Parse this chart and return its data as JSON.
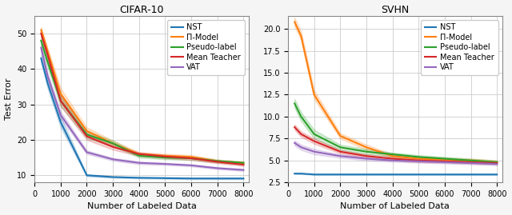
{
  "cifar10": {
    "title": "CIFAR-10",
    "xlabel": "Number of Labeled Data",
    "ylabel": "Test Error",
    "x": [
      250,
      500,
      1000,
      2000,
      3000,
      4000,
      5000,
      6000,
      7000,
      8000
    ],
    "series": {
      "NST": {
        "color": "#1f77b4",
        "mean": [
          43,
          36,
          25,
          10,
          9.5,
          9.3,
          9.2,
          9.1,
          9.1,
          9.1
        ],
        "std": [
          1.0,
          1.5,
          1.5,
          0.3,
          0.2,
          0.2,
          0.2,
          0.2,
          0.2,
          0.2
        ]
      },
      "Pi-Model": {
        "color": "#ff7f0e",
        "mean": [
          51,
          45,
          33,
          22.5,
          19,
          16,
          15.5,
          15.2,
          14.0,
          13.5
        ],
        "std": [
          0.8,
          1.0,
          1.5,
          1.0,
          0.8,
          0.5,
          0.5,
          0.5,
          0.4,
          0.4
        ]
      },
      "Pseudo-label": {
        "color": "#2ca02c",
        "mean": [
          48,
          42,
          31,
          21.5,
          19,
          15.5,
          15.0,
          14.8,
          14.0,
          13.5
        ],
        "std": [
          1.5,
          1.5,
          1.5,
          1.0,
          0.8,
          0.5,
          0.5,
          0.5,
          0.4,
          0.4
        ]
      },
      "Mean Teacher": {
        "color": "#d62728",
        "mean": [
          50,
          44,
          31,
          21,
          18,
          16,
          15.3,
          14.8,
          13.8,
          13.0
        ],
        "std": [
          1.0,
          1.0,
          1.5,
          1.0,
          0.8,
          0.5,
          0.5,
          0.5,
          0.4,
          0.4
        ]
      },
      "VAT": {
        "color": "#9467bd",
        "mean": [
          46,
          38,
          27,
          16.5,
          14.5,
          13.5,
          13.2,
          12.8,
          12.0,
          11.5
        ],
        "std": [
          1.0,
          1.0,
          1.0,
          0.5,
          0.4,
          0.4,
          0.3,
          0.3,
          0.3,
          0.3
        ]
      }
    },
    "legend_labels": [
      "NST",
      "Π-Model",
      "Pseudo-label",
      "Mean Teacher",
      "VAT"
    ],
    "ylim": [
      8,
      55
    ],
    "yticks": [
      10,
      20,
      30,
      40,
      50
    ],
    "xlim": [
      0,
      8200
    ],
    "xticks": [
      0,
      1000,
      2000,
      3000,
      4000,
      5000,
      6000,
      7000,
      8000
    ]
  },
  "svhn": {
    "title": "SVHN",
    "xlabel": "Number of Labeled Data",
    "ylabel": "",
    "x": [
      250,
      500,
      1000,
      2000,
      3000,
      4000,
      5000,
      6000,
      7000,
      8000
    ],
    "series": {
      "NST": {
        "color": "#1f77b4",
        "mean": [
          3.5,
          3.5,
          3.4,
          3.4,
          3.4,
          3.4,
          3.4,
          3.4,
          3.4,
          3.4
        ],
        "std": [
          0.05,
          0.05,
          0.05,
          0.05,
          0.05,
          0.05,
          0.05,
          0.05,
          0.05,
          0.05
        ]
      },
      "Pi-Model": {
        "color": "#ff7f0e",
        "mean": [
          20.8,
          19.2,
          12.5,
          7.8,
          6.5,
          5.5,
          5.2,
          5.1,
          5.0,
          4.8
        ],
        "std": [
          0.5,
          0.5,
          0.5,
          0.3,
          0.3,
          0.2,
          0.2,
          0.2,
          0.2,
          0.2
        ]
      },
      "Pseudo-label": {
        "color": "#2ca02c",
        "mean": [
          11.5,
          10.0,
          8.0,
          6.5,
          6.0,
          5.7,
          5.4,
          5.2,
          5.0,
          4.8
        ],
        "std": [
          0.5,
          0.5,
          0.5,
          0.3,
          0.3,
          0.2,
          0.2,
          0.2,
          0.2,
          0.2
        ]
      },
      "Mean Teacher": {
        "color": "#d62728",
        "mean": [
          8.8,
          8.0,
          7.2,
          6.0,
          5.5,
          5.2,
          5.0,
          4.9,
          4.8,
          4.7
        ],
        "std": [
          0.3,
          0.3,
          0.3,
          0.2,
          0.2,
          0.2,
          0.2,
          0.15,
          0.15,
          0.15
        ]
      },
      "VAT": {
        "color": "#9467bd",
        "mean": [
          7.0,
          6.5,
          6.0,
          5.5,
          5.2,
          5.0,
          4.9,
          4.8,
          4.7,
          4.6
        ],
        "std": [
          0.3,
          0.3,
          0.3,
          0.2,
          0.2,
          0.15,
          0.15,
          0.15,
          0.15,
          0.15
        ]
      }
    },
    "legend_labels": [
      "NST",
      "Π-Model",
      "Pseudo-label",
      "Mean Teacher",
      "VAT"
    ],
    "ylim": [
      2.5,
      21.5
    ],
    "yticks": [
      2.5,
      5.0,
      7.5,
      10.0,
      12.5,
      15.0,
      17.5,
      20.0
    ],
    "xlim": [
      0,
      8200
    ],
    "xticks": [
      0,
      1000,
      2000,
      3000,
      4000,
      5000,
      6000,
      7000,
      8000
    ]
  },
  "fig_bg": "#f5f5f5",
  "ax_bg": "#ffffff",
  "grid_color": "#cccccc",
  "title_fontsize": 9,
  "label_fontsize": 8,
  "tick_fontsize": 7,
  "legend_fontsize": 7,
  "linewidth": 1.5,
  "fill_alpha": 0.2
}
